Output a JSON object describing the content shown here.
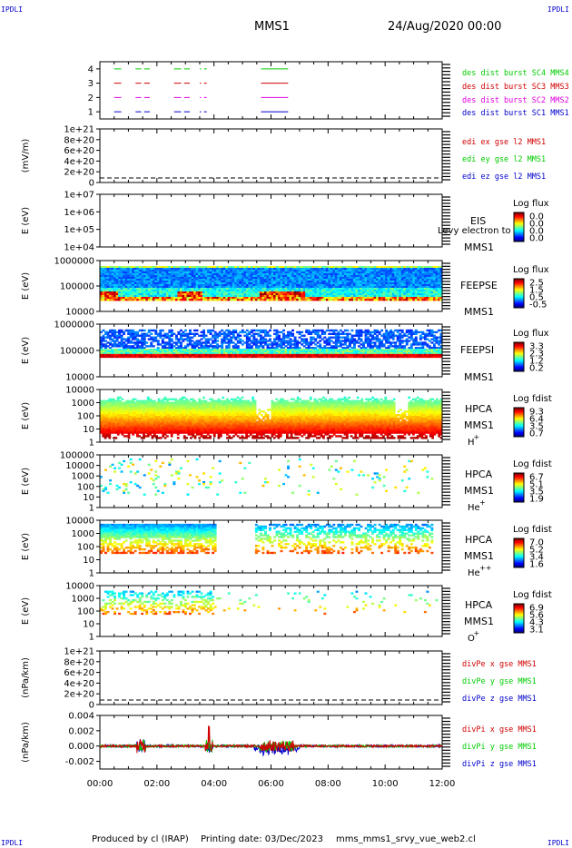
{
  "corner": {
    "tl": "IPDLI",
    "tr": "IPDLI",
    "bl": "IPDLI",
    "br": "IPDLI"
  },
  "header": {
    "mission": "MMS1",
    "date": "24/Aug/2020 00:00"
  },
  "footer": {
    "produced": "Produced by cl (IRAP)",
    "printed": "Printing date: 03/Dec/2023",
    "script": "mms_mms1_srvy_vue_web2.cl"
  },
  "colors": {
    "blue": "#0000cc",
    "magenta": "#e000e0",
    "red": "#d00000",
    "green": "#00cc00"
  },
  "chart_data": [
    {
      "type": "line",
      "id": "burst",
      "ylim": [
        0.5,
        4.5
      ],
      "yticks": [
        "1",
        "2",
        "3",
        "4"
      ],
      "series": [
        {
          "name": "des dist burst SC1 MMS1",
          "level": 1,
          "color": "#0000cc"
        },
        {
          "name": "des dist burst SC2 MMS2",
          "level": 2,
          "color": "#e000e0"
        },
        {
          "name": "des dist burst SC3 MMS3",
          "level": 3,
          "color": "#d00000"
        },
        {
          "name": "des dist burst SC4 MMS4",
          "level": 4,
          "color": "#00cc00"
        }
      ],
      "intervals_hours": [
        [
          0.5,
          0.75
        ],
        [
          1.25,
          1.45
        ],
        [
          1.55,
          1.75
        ],
        [
          2.6,
          2.85
        ],
        [
          2.95,
          3.15
        ],
        [
          3.5,
          3.55
        ],
        [
          3.65,
          3.75
        ],
        [
          5.65,
          6.6
        ]
      ]
    },
    {
      "type": "line",
      "id": "edi",
      "ylabel": "(mV/m)",
      "yticks": [
        "1e+21",
        "8e+20",
        "6e+20",
        "4e+20",
        "2e+20",
        "0"
      ],
      "ylim": [
        0,
        1e+21
      ],
      "series": [
        {
          "name": "edi ex gse l2 MMS1",
          "color": "#d00000"
        },
        {
          "name": "edi ey gse l2 MMS1",
          "color": "#00cc00"
        },
        {
          "name": "edi ez gse l2 MMS1",
          "color": "#0000cc"
        }
      ]
    },
    {
      "type": "heatmap",
      "id": "eis",
      "ylabel": "E (eV)",
      "yticks": [
        "1e+07",
        "1e+06",
        "1e+05",
        "1e+04"
      ],
      "label1": "EIS",
      "label2": "MMS1",
      "overlay": "Levy electron to",
      "cbar_title": "Log flux",
      "cbar_ticks": [
        "0.0",
        "0.0",
        "0.0",
        "0.0"
      ]
    },
    {
      "type": "heatmap",
      "id": "feepse",
      "ylabel": "E (eV)",
      "yticks": [
        "1000000",
        "100000",
        "10000"
      ],
      "label1": "FEEPSE",
      "label2": "MMS1",
      "cbar_title": "Log flux",
      "cbar_ticks": [
        "2.5",
        "1.5",
        "0.5",
        "-0.5"
      ]
    },
    {
      "type": "heatmap",
      "id": "feepsi",
      "ylabel": "E (eV)",
      "yticks": [
        "1000000",
        "100000",
        "10000"
      ],
      "label1": "FEEPSI",
      "label2": "MMS1",
      "cbar_title": "Log flux",
      "cbar_ticks": [
        "3.3",
        "2.3",
        "1.2",
        "0.2"
      ]
    },
    {
      "type": "heatmap",
      "id": "hpca_h",
      "ylabel": "E (eV)",
      "yticks": [
        "10000",
        "1000",
        "100",
        "10",
        "1"
      ],
      "label1": "HPCA",
      "label2": "MMS1",
      "species": "H",
      "charge": "+",
      "cbar_title": "Log fdist",
      "cbar_ticks": [
        "9.3",
        "6.4",
        "3.5",
        "0.7"
      ]
    },
    {
      "type": "heatmap",
      "id": "hpca_he",
      "ylabel": "E (eV)",
      "yticks": [
        "100000",
        "10000",
        "1000",
        "100",
        "10",
        "1"
      ],
      "label1": "HPCA",
      "label2": "MMS1",
      "species": "He",
      "charge": "+",
      "cbar_title": "Log fdist",
      "cbar_ticks": [
        "6.7",
        "5.1",
        "3.5",
        "1.9"
      ]
    },
    {
      "type": "heatmap",
      "id": "hpca_hepp",
      "ylabel": "E (eV)",
      "yticks": [
        "10000",
        "1000",
        "100",
        "10",
        "1"
      ],
      "label1": "HPCA",
      "label2": "MMS1",
      "species": "He",
      "charge": "++",
      "cbar_title": "Log fdist",
      "cbar_ticks": [
        "7.0",
        "5.2",
        "3.4",
        "1.6"
      ]
    },
    {
      "type": "heatmap",
      "id": "hpca_o",
      "ylabel": "E (eV)",
      "yticks": [
        "10000",
        "1000",
        "100",
        "10",
        "1"
      ],
      "label1": "HPCA",
      "label2": "MMS1",
      "species": "O",
      "charge": "+",
      "cbar_title": "Log fdist",
      "cbar_ticks": [
        "6.9",
        "5.6",
        "4.3",
        "3.1"
      ]
    },
    {
      "type": "line",
      "id": "divpe",
      "ylabel": "(nPa/km)",
      "yticks": [
        "1e+21",
        "8e+20",
        "6e+20",
        "4e+20",
        "2e+20",
        "0"
      ],
      "ylim": [
        0,
        1e+21
      ],
      "series": [
        {
          "name": "divPe x gse MMS1",
          "color": "#d00000"
        },
        {
          "name": "divPe y gse MMS1",
          "color": "#00cc00"
        },
        {
          "name": "divPe z gse MMS1",
          "color": "#0000cc"
        }
      ]
    },
    {
      "type": "line",
      "id": "divpi",
      "ylabel": "(nPa/km)",
      "yticks": [
        "0.004",
        "0.002",
        "0.000",
        "-0.002"
      ],
      "ylim": [
        -0.003,
        0.004
      ],
      "series": [
        {
          "name": "divPi x gse MMS1",
          "color": "#d00000"
        },
        {
          "name": "divPi y gse MMS1",
          "color": "#00cc00"
        },
        {
          "name": "divPi z gse MMS1",
          "color": "#0000cc"
        }
      ]
    }
  ],
  "xaxis": {
    "ticks": [
      "00:00",
      "02:00",
      "04:00",
      "06:00",
      "08:00",
      "10:00",
      "12:00"
    ],
    "range_hours": [
      0,
      12
    ]
  }
}
